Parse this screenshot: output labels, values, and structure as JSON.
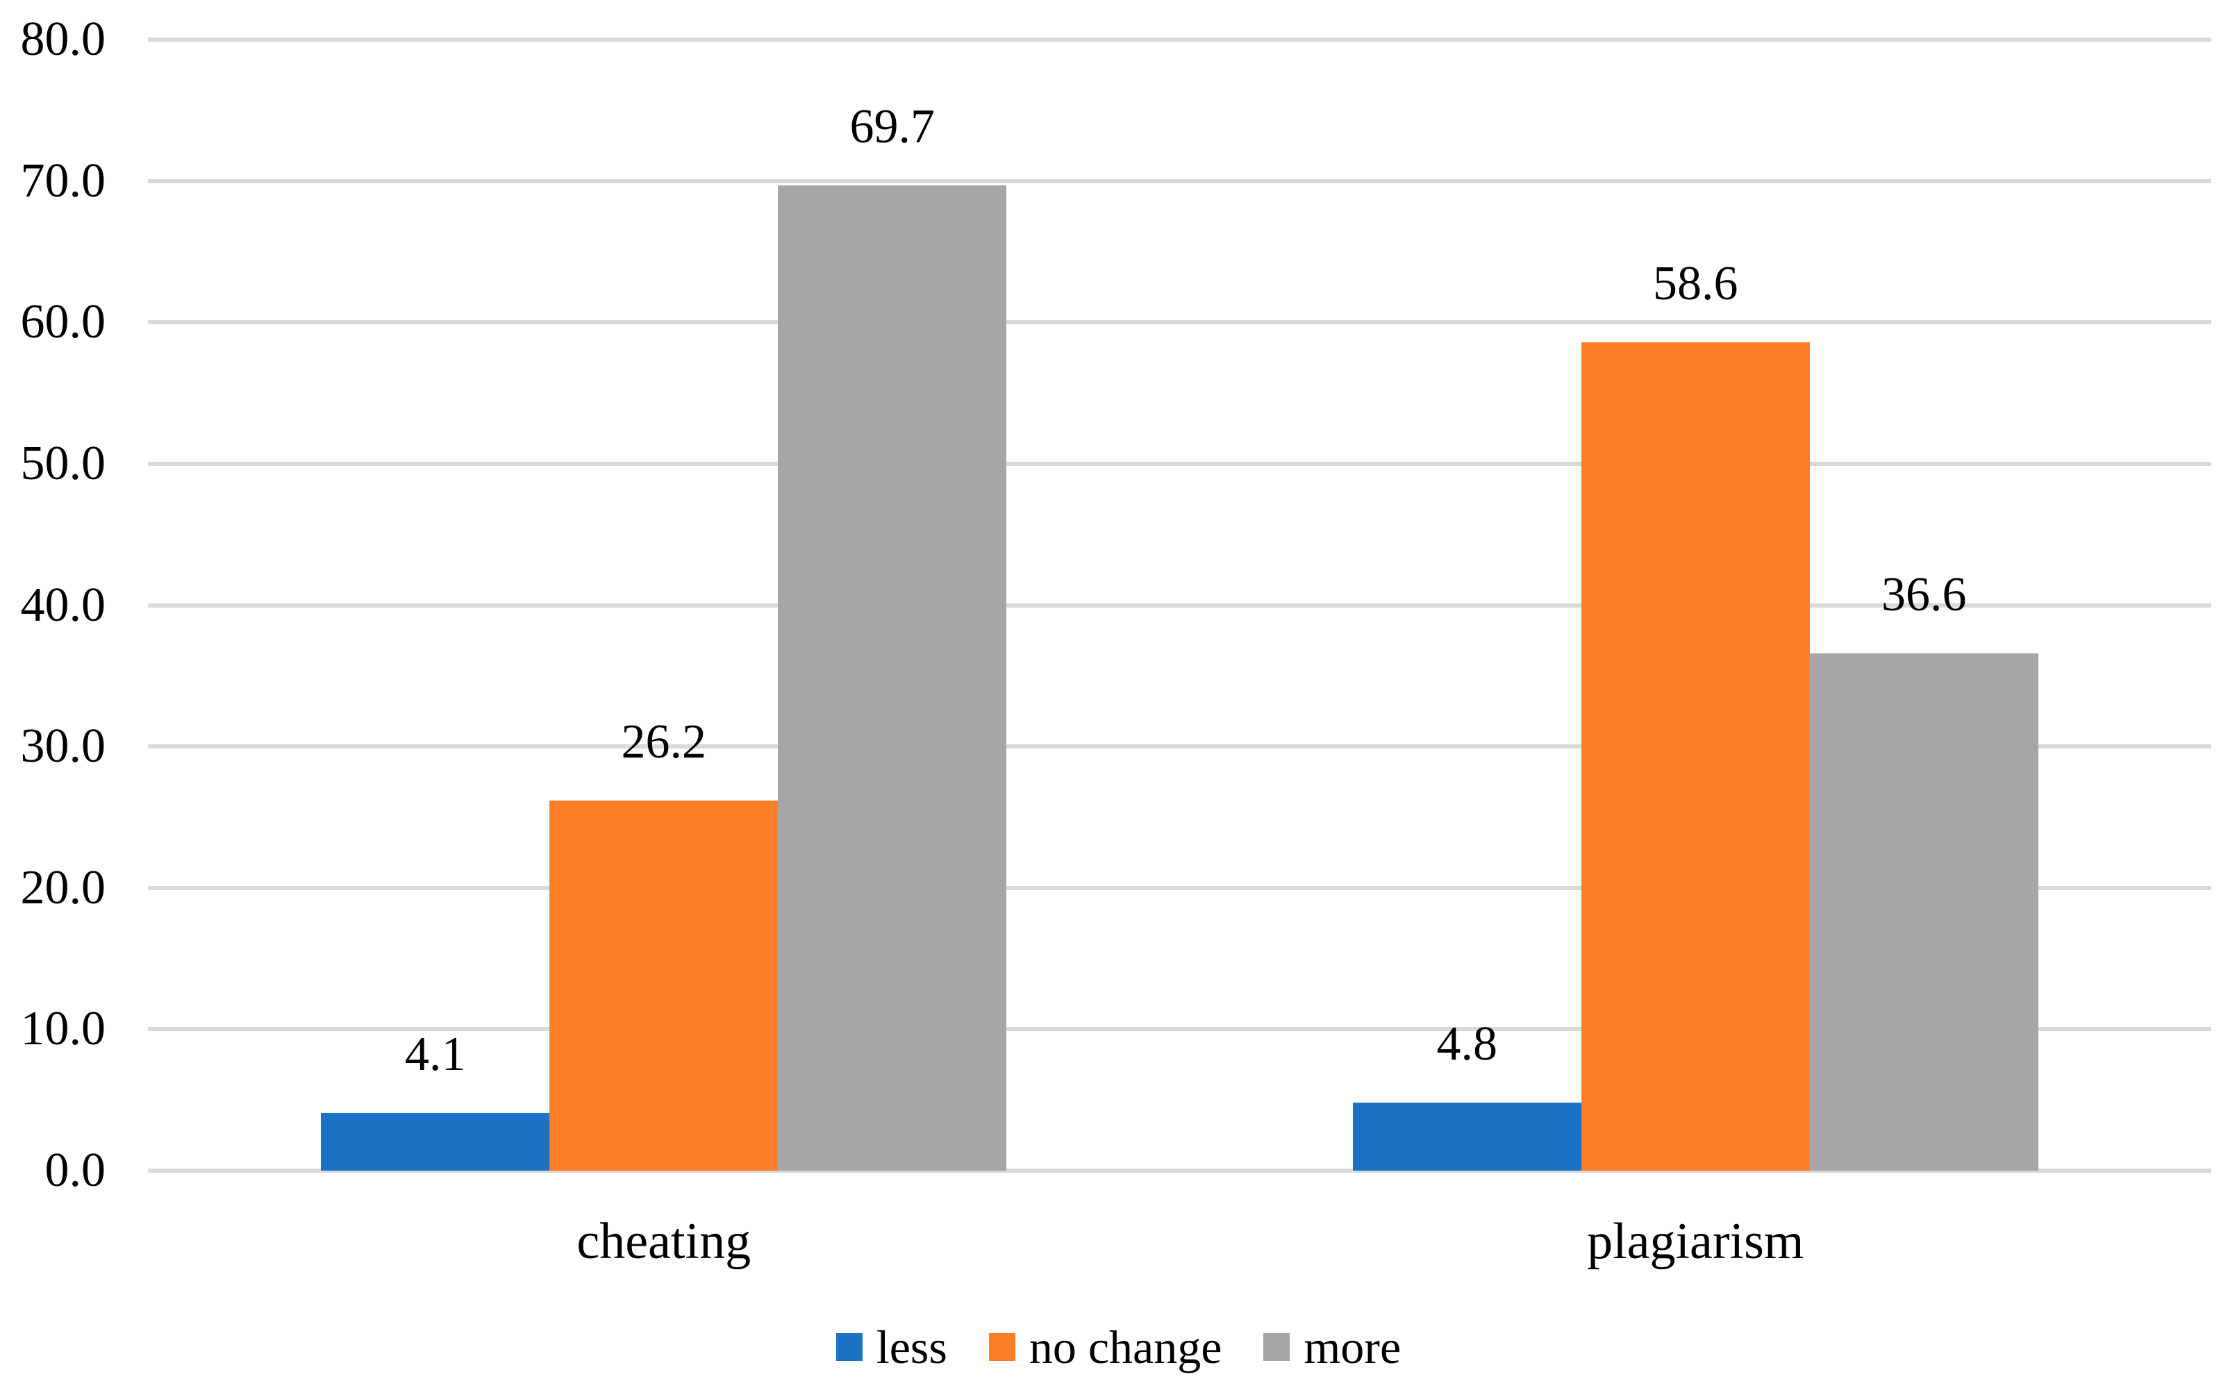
{
  "figure": {
    "background": "#FFFFFF"
  },
  "chart_data": {
    "type": "bar",
    "title": "",
    "categories": [
      "cheating",
      "plagiarism"
    ],
    "series": [
      {
        "name": "less",
        "color": "#1B73C5",
        "values": [
          4.1,
          4.8
        ]
      },
      {
        "name": "no change",
        "color": "#FD7E27",
        "values": [
          26.2,
          58.6
        ]
      },
      {
        "name": "more",
        "color": "#A6A6A6",
        "values": [
          69.7,
          36.6
        ]
      }
    ],
    "data_labels": true,
    "value_label_decimals": 1,
    "xlabel": "",
    "ylabel": "",
    "ylim": [
      0,
      80
    ],
    "y_tick_step": 10,
    "y_tick_decimals": 1,
    "grid": true,
    "gridline_color": "#D9D9D9",
    "text_color": "#000000",
    "legend_position": "bottom",
    "legend_entries": [
      "less",
      "no change",
      "more"
    ]
  }
}
